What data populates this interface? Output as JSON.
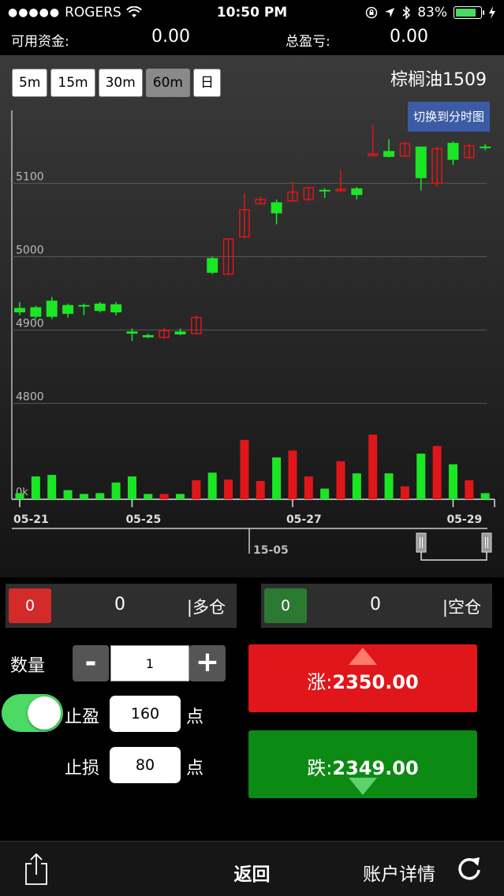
{
  "status_bar": {
    "signal_dots": "●●●●●",
    "carrier": "ROGERS",
    "time": "10:50 PM",
    "battery": "83%",
    "battery_level": 0.83
  },
  "account": {
    "available_label": "可用资金:",
    "available_value": "0.00",
    "pnl_label": "总盈亏:",
    "pnl_value": "0.00"
  },
  "timeframes": [
    {
      "label": "5m",
      "active": false
    },
    {
      "label": "15m",
      "active": false
    },
    {
      "label": "30m",
      "active": false
    },
    {
      "label": "60m",
      "active": true
    },
    {
      "label": "日",
      "active": false
    }
  ],
  "instrument": "棕榈油1509",
  "switch_label": "切换到分时图",
  "chart_data": {
    "type": "candlestick",
    "ylim": [
      4780,
      5210
    ],
    "yticks": [
      "5100",
      "5000",
      "4900",
      "4800"
    ],
    "ytick_values": [
      5100,
      5000,
      4900,
      4800
    ],
    "volume_label": "0k",
    "x_labels": [
      "05-21",
      "05-25",
      "05-27",
      "05-29"
    ],
    "x_label_index": [
      0,
      7,
      17,
      27
    ],
    "navigator_label": "15-05",
    "candles": [
      {
        "o": 4930,
        "h": 4938,
        "l": 4920,
        "c": 4924,
        "v": 8
      },
      {
        "o": 4931,
        "h": 4933,
        "l": 4915,
        "c": 4918,
        "v": 30
      },
      {
        "o": 4940,
        "h": 4945,
        "l": 4915,
        "c": 4918,
        "v": 32
      },
      {
        "o": 4934,
        "h": 4936,
        "l": 4917,
        "c": 4922,
        "v": 12
      },
      {
        "o": 4934,
        "h": 4936,
        "l": 4920,
        "c": 4933,
        "v": 7
      },
      {
        "o": 4936,
        "h": 4938,
        "l": 4924,
        "c": 4926,
        "v": 8
      },
      {
        "o": 4935,
        "h": 4938,
        "l": 4920,
        "c": 4924,
        "v": 22
      },
      {
        "o": 4898,
        "h": 4902,
        "l": 4885,
        "c": 4895,
        "v": 30
      },
      {
        "o": 4893,
        "h": 4895,
        "l": 4889,
        "c": 4890,
        "v": 7
      },
      {
        "o": 4890,
        "h": 4903,
        "l": 4888,
        "c": 4899,
        "v": 7
      },
      {
        "o": 4898,
        "h": 4902,
        "l": 4893,
        "c": 4894,
        "v": 7
      },
      {
        "o": 4895,
        "h": 4920,
        "l": 4894,
        "c": 4917,
        "v": 25
      },
      {
        "o": 4998,
        "h": 5000,
        "l": 4976,
        "c": 4978,
        "v": 35
      },
      {
        "o": 4976,
        "h": 5025,
        "l": 4975,
        "c": 5024,
        "v": 26
      },
      {
        "o": 5027,
        "h": 5087,
        "l": 5025,
        "c": 5064,
        "v": 78
      },
      {
        "o": 5072,
        "h": 5082,
        "l": 5071,
        "c": 5078,
        "v": 24
      },
      {
        "o": 5074,
        "h": 5078,
        "l": 5044,
        "c": 5059,
        "v": 55
      },
      {
        "o": 5076,
        "h": 5102,
        "l": 5075,
        "c": 5088,
        "v": 64
      },
      {
        "o": 5078,
        "h": 5095,
        "l": 5076,
        "c": 5094,
        "v": 30
      },
      {
        "o": 5091,
        "h": 5093,
        "l": 5080,
        "c": 5090,
        "v": 14
      },
      {
        "o": 5091,
        "h": 5118,
        "l": 5088,
        "c": 5092,
        "v": 50
      },
      {
        "o": 5093,
        "h": 5095,
        "l": 5078,
        "c": 5084,
        "v": 34
      },
      {
        "o": 5140,
        "h": 5180,
        "l": 5138,
        "c": 5140,
        "v": 85
      },
      {
        "o": 5144,
        "h": 5160,
        "l": 5135,
        "c": 5136,
        "v": 34
      },
      {
        "o": 5137,
        "h": 5157,
        "l": 5136,
        "c": 5154,
        "v": 17
      },
      {
        "o": 5150,
        "h": 5150,
        "l": 5090,
        "c": 5107,
        "v": 60
      },
      {
        "o": 5100,
        "h": 5150,
        "l": 5095,
        "c": 5147,
        "v": 70
      },
      {
        "o": 5155,
        "h": 5157,
        "l": 5125,
        "c": 5132,
        "v": 46
      },
      {
        "o": 5135,
        "h": 5154,
        "l": 5133,
        "c": 5151,
        "v": 25
      },
      {
        "o": 5150,
        "h": 5153,
        "l": 5145,
        "c": 5149,
        "v": 8
      }
    ]
  },
  "positions": {
    "long": {
      "badge": "0",
      "count": "0",
      "label": "|多仓"
    },
    "short": {
      "badge": "0",
      "count": "0",
      "label": "|空仓"
    }
  },
  "order": {
    "qty_label": "数量",
    "minus": "-",
    "plus": "+",
    "qty_value": "1",
    "take_profit_label": "止盈",
    "take_profit_value": "160",
    "stop_loss_label": "止损",
    "stop_loss_value": "80",
    "unit": "点",
    "buy_label": "涨:",
    "buy_price": "2350.00",
    "sell_label": "跌:",
    "sell_price": "2349.00"
  },
  "toolbar": {
    "back": "返回",
    "details": "账户详情"
  },
  "colors": {
    "up": "#e0161a",
    "down": "#1be624",
    "buy": "#e0161a",
    "sell": "#0c8a14"
  }
}
